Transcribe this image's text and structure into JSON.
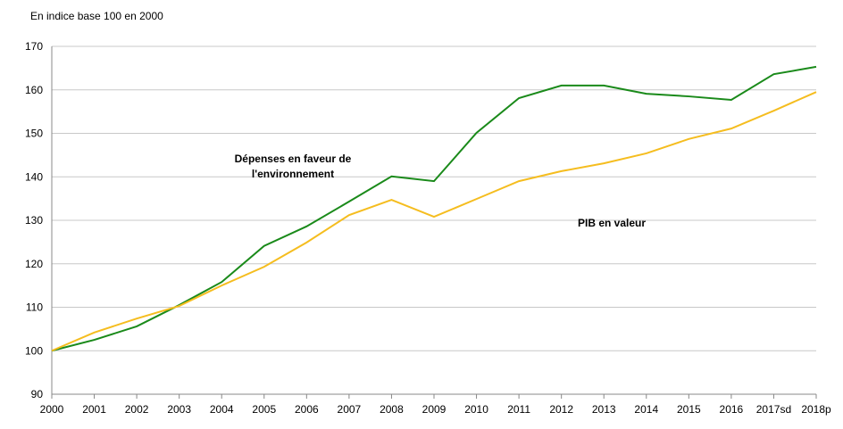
{
  "chart_data": {
    "type": "line",
    "subtitle": "En indice base 100 en 2000",
    "categories": [
      "2000",
      "2001",
      "2002",
      "2003",
      "2004",
      "2005",
      "2006",
      "2007",
      "2008",
      "2009",
      "2010",
      "2011",
      "2012",
      "2013",
      "2014",
      "2015",
      "2016",
      "2017sd",
      "2018p"
    ],
    "series": [
      {
        "name": "Dépenses en faveur de l'environnement",
        "color": "#1a8a1a",
        "values": [
          100,
          102.5,
          105.6,
          110.5,
          115.8,
          124.1,
          128.6,
          134.3,
          140.1,
          139.0,
          150.1,
          158.1,
          161.0,
          161.0,
          159.1,
          158.5,
          157.7,
          163.6,
          165.3
        ]
      },
      {
        "name": "PIB en valeur",
        "color": "#f5bd1f",
        "values": [
          100,
          104.2,
          107.4,
          110.3,
          115.0,
          119.3,
          124.9,
          131.2,
          134.7,
          130.8,
          134.9,
          139.0,
          141.3,
          143.1,
          145.4,
          148.7,
          151.1,
          155.2,
          159.5
        ]
      }
    ],
    "ylim": [
      90,
      170
    ],
    "yticks": [
      90,
      100,
      110,
      120,
      130,
      140,
      150,
      160,
      170
    ],
    "grid": true
  }
}
